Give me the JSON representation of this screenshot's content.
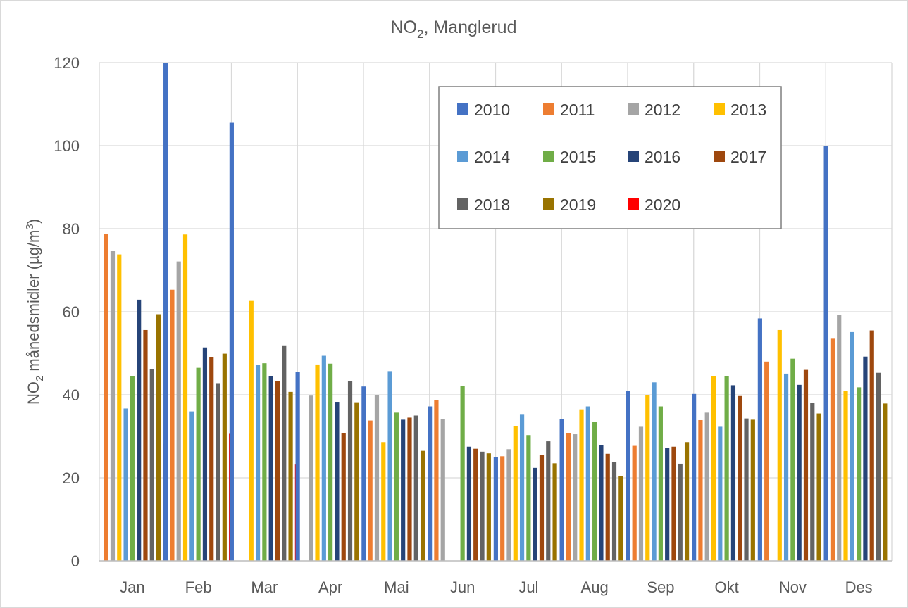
{
  "chart_data": {
    "type": "bar",
    "title_main": "NO",
    "title_sub": "2",
    "title_rest": ", Manglerud",
    "ylabel_main": "NO",
    "ylabel_sub": "2",
    "ylabel_mid": " månedsmidler (µg/m",
    "ylabel_sup": "3",
    "ylabel_end": ")",
    "ylim": [
      0,
      120
    ],
    "yticks": [
      0,
      20,
      40,
      60,
      80,
      100,
      120
    ],
    "ytick_labels": [
      "0",
      "20",
      "40",
      "60",
      "80",
      "100",
      "120"
    ],
    "grid": true,
    "legend_position": "top-right",
    "categories": [
      "Jan",
      "Feb",
      "Mar",
      "Apr",
      "Mai",
      "Jun",
      "Jul",
      "Aug",
      "Sep",
      "Okt",
      "Nov",
      "Des"
    ],
    "series": [
      {
        "name": "2010",
        "color": "#4472c4",
        "values": [
          null,
          120,
          105.5,
          45.5,
          42,
          37.2,
          25,
          34.2,
          41,
          40.2,
          58.4,
          100
        ]
      },
      {
        "name": "2011",
        "color": "#ed7d31",
        "values": [
          78.8,
          65.3,
          null,
          null,
          33.8,
          38.7,
          25.2,
          30.8,
          27.7,
          33.9,
          48,
          53.5
        ]
      },
      {
        "name": "2012",
        "color": "#a5a5a5",
        "values": [
          74.6,
          72.1,
          null,
          39.8,
          40,
          34.2,
          26.9,
          30.5,
          32.3,
          35.7,
          null,
          59.2
        ]
      },
      {
        "name": "2013",
        "color": "#ffc000",
        "values": [
          73.8,
          78.6,
          62.6,
          47.3,
          28.6,
          null,
          32.5,
          36.5,
          40,
          44.5,
          55.6,
          41
        ]
      },
      {
        "name": "2014",
        "color": "#5b9bd5",
        "values": [
          36.7,
          36,
          47.2,
          49.4,
          45.7,
          null,
          35.2,
          37.2,
          43,
          32.3,
          45.1,
          55.1
        ]
      },
      {
        "name": "2015",
        "color": "#70ad47",
        "values": [
          44.5,
          46.5,
          47.6,
          47.5,
          35.7,
          42.2,
          30.3,
          33.5,
          37.2,
          44.5,
          48.7,
          41.8
        ]
      },
      {
        "name": "2016",
        "color": "#264478",
        "values": [
          62.9,
          51.4,
          44.5,
          38.3,
          34,
          27.5,
          22.4,
          27.9,
          27.2,
          42.3,
          42.4,
          49.2
        ]
      },
      {
        "name": "2017",
        "color": "#9e480e",
        "values": [
          55.6,
          49,
          43.3,
          30.8,
          34.5,
          27,
          25.5,
          25.8,
          27.5,
          39.7,
          46,
          55.5
        ]
      },
      {
        "name": "2018",
        "color": "#636363",
        "values": [
          46.1,
          42.8,
          51.9,
          43.3,
          35,
          26.3,
          28.8,
          23.8,
          23.4,
          34.3,
          38.1,
          45.3
        ]
      },
      {
        "name": "2019",
        "color": "#997300",
        "values": [
          59.4,
          49.9,
          40.7,
          38.2,
          26.5,
          25.9,
          23.5,
          20.4,
          28.6,
          34,
          35.5,
          37.9
        ]
      },
      {
        "name": "2020",
        "color": "#ff0000",
        "values": [
          28.2,
          30.6,
          23.2,
          null,
          null,
          null,
          null,
          null,
          null,
          null,
          null,
          null
        ]
      }
    ]
  }
}
